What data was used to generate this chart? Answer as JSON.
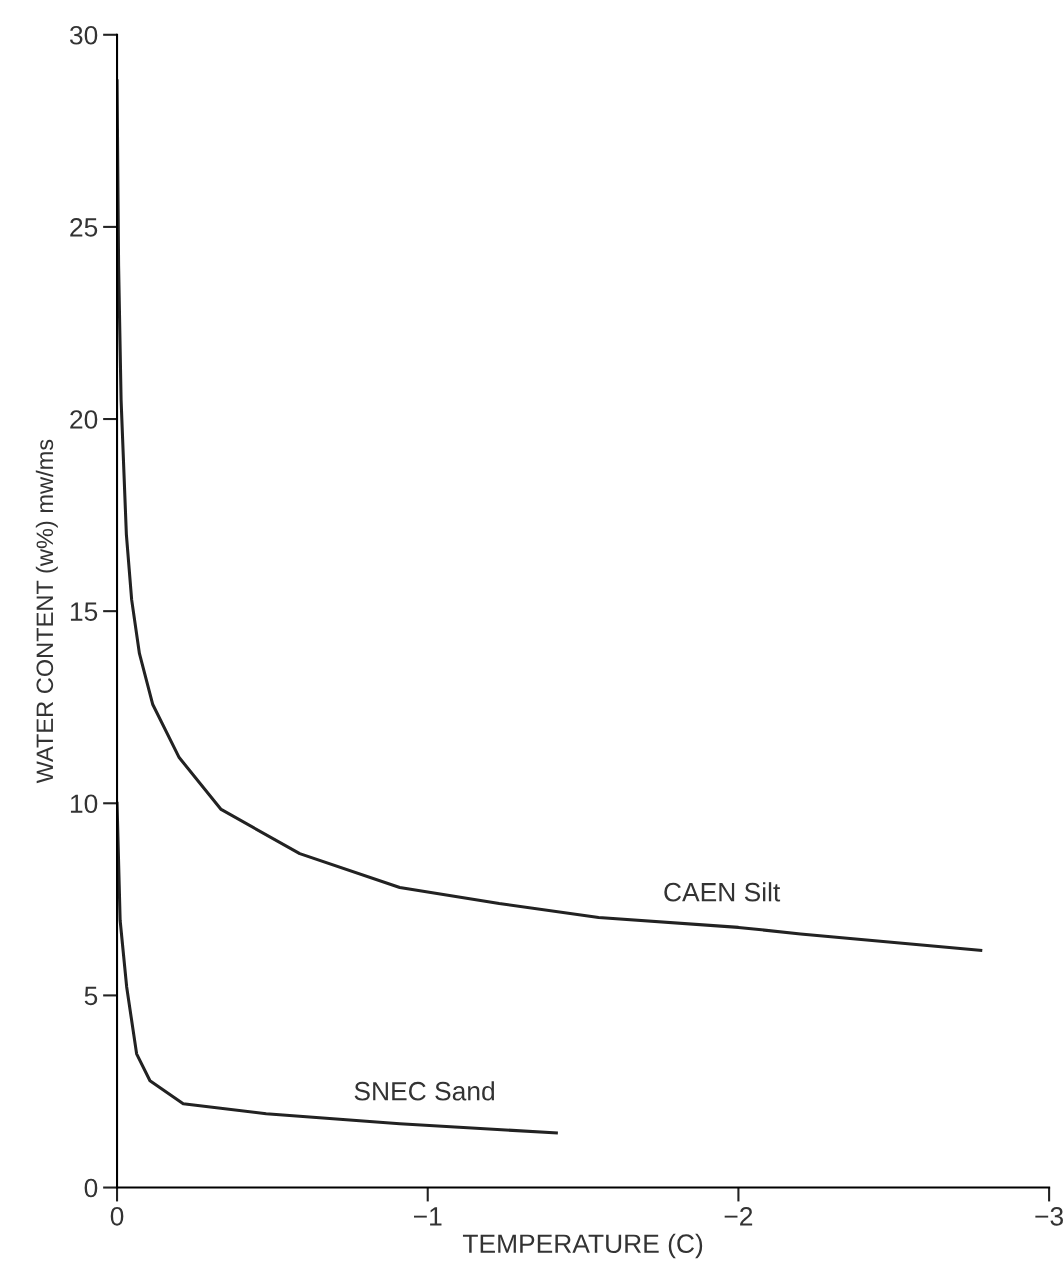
{
  "chart_data": {
    "type": "line",
    "xlabel": "TEMPERATURE (C)",
    "ylabel": "WATER CONTENT (w%) mw/ms",
    "xlim": [
      0,
      -3
    ],
    "xticks": [
      0,
      {
        "value": -1,
        "label": "−1"
      },
      {
        "value": -2,
        "label": "−2"
      },
      {
        "value": -3,
        "label": "−3"
      }
    ],
    "ylim": [
      0,
      30
    ],
    "yticks": [
      0,
      5,
      10,
      15,
      20,
      25,
      30
    ],
    "grid": false,
    "legend": false,
    "marker": "none",
    "line_style": "solid",
    "series": [
      {
        "name": "CAEN Silt",
        "color": "#222222",
        "x": [
          0,
          -0.005,
          -0.013,
          -0.03,
          -0.047,
          -0.072,
          -0.115,
          -0.2,
          -0.335,
          -0.588,
          -0.91,
          -1.23,
          -1.55,
          -2.0,
          -2.2,
          -2.78
        ],
        "values": [
          28.8,
          24.0,
          20.5,
          17.0,
          15.3,
          13.9,
          12.57,
          11.19,
          9.84,
          8.69,
          7.81,
          7.39,
          7.03,
          6.77,
          6.6,
          6.17
        ]
      },
      {
        "name": "SNEC Sand",
        "color": "#222222",
        "x": [
          0,
          -0.01,
          -0.031,
          -0.063,
          -0.106,
          -0.213,
          -0.48,
          -0.91,
          -1.414
        ],
        "values": [
          10.0,
          6.95,
          5.22,
          3.48,
          2.78,
          2.18,
          1.92,
          1.66,
          1.42
        ]
      }
    ]
  }
}
